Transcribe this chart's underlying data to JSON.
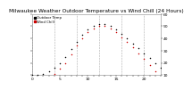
{
  "title": "Milwaukee Weather Outdoor Temperature vs Wind Chill (24 Hours)",
  "bg_color": "#ffffff",
  "plot_bg_color": "#ffffff",
  "grid_color": "#aaaaaa",
  "text_color": "#000000",
  "temp_color": "#000000",
  "windchill_color": "#cc0000",
  "windchill2_color": "#0000cc",
  "hours": [
    0,
    1,
    2,
    3,
    4,
    5,
    6,
    7,
    8,
    9,
    10,
    11,
    12,
    13,
    14,
    15,
    16,
    17,
    18,
    19,
    20,
    21,
    22,
    23
  ],
  "temp_values": [
    10,
    10,
    11,
    13,
    16,
    20,
    25,
    31,
    37,
    43,
    47,
    50,
    52,
    52,
    50,
    47,
    44,
    40,
    36,
    32,
    28,
    24,
    20,
    16
  ],
  "windchill_values": [
    5,
    5,
    6,
    8,
    11,
    15,
    20,
    27,
    34,
    40,
    45,
    48,
    50,
    50,
    48,
    45,
    41,
    37,
    33,
    28,
    23,
    18,
    13,
    9
  ],
  "xlim": [
    0,
    23
  ],
  "ylim": [
    10,
    60
  ],
  "ytick_values": [
    10,
    20,
    30,
    40,
    50,
    60
  ],
  "ytick_labels": [
    "10",
    "20",
    "30",
    "40",
    "50",
    "60"
  ],
  "legend_temp": "Outdoor Temp",
  "legend_wc": "Wind Chill",
  "title_fontsize": 4.2,
  "legend_fontsize": 2.8,
  "tick_fontsize": 3.2,
  "marker_size": 1.2,
  "grid_vlines": [
    0,
    4,
    8,
    12,
    16,
    20
  ]
}
